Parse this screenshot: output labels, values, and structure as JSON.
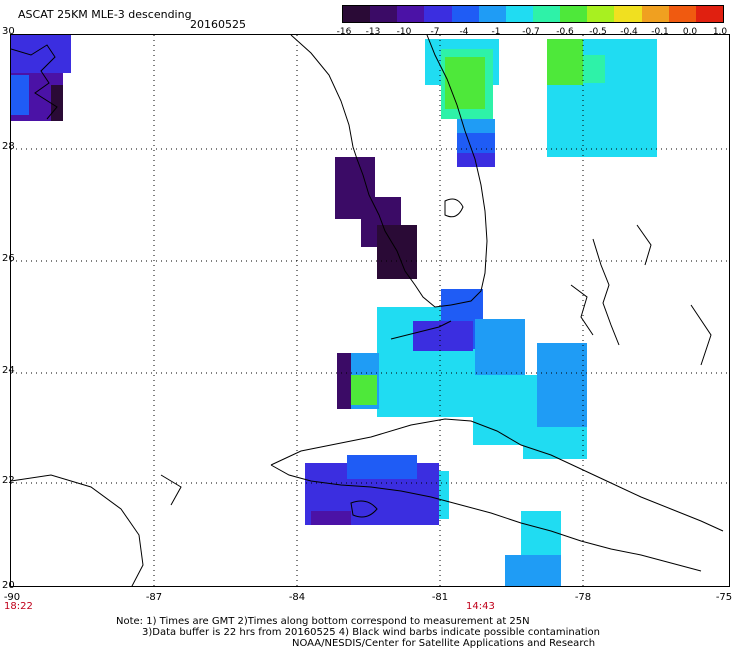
{
  "header": {
    "title": "ASCAT 25KM MLE-3 descending",
    "date": "20160525"
  },
  "colorbar": {
    "labels": [
      "-16",
      "-13",
      "-10",
      "-7",
      "-4",
      "-1",
      "-0.7",
      "-0.6",
      "-0.5",
      "-0.4",
      "-0.1",
      "0.0",
      "1.0"
    ],
    "colors": [
      "#2a0a36",
      "#3b0b66",
      "#4b12a6",
      "#3b2ee0",
      "#1f5cf5",
      "#1f9cf5",
      "#20dcf2",
      "#2ef2a8",
      "#4ee83a",
      "#a8f020",
      "#f0e020",
      "#f0a020",
      "#f05a10",
      "#e02010"
    ]
  },
  "axes": {
    "y_labels": [
      "30",
      "28",
      "26",
      "24",
      "22",
      "20"
    ],
    "x_labels": [
      "-90",
      "-87",
      "-84",
      "-81",
      "-78",
      "-75"
    ]
  },
  "times": {
    "left": "18:22",
    "mid": "14:43"
  },
  "notes": {
    "line1": "Note: 1) Times are GMT 2)Times along bottom correspond to measurement at 25N",
    "line2": "3)Data buffer is 22 hrs from 20160525 4) Black wind barbs indicate possible contamination",
    "line3": "NOAA/NESDIS/Center for Satellite Applications and Research"
  }
}
